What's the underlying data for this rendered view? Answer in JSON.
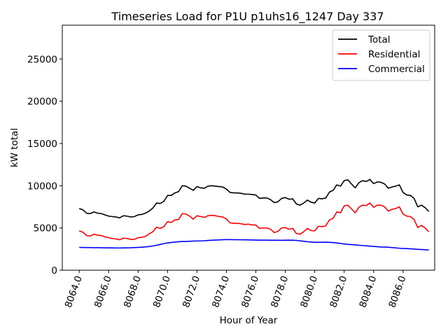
{
  "chart_data": {
    "type": "line",
    "title": "Timeseries Load for P1U p1uhs16_1247  Day 337",
    "xlabel": "Hour of Year",
    "ylabel": "kW total",
    "xlim": [
      8062.85,
      8088.15
    ],
    "ylim": [
      0,
      29000
    ],
    "xticks": [
      8064,
      8066,
      8068,
      8070,
      8072,
      8074,
      8076,
      8078,
      8080,
      8082,
      8084,
      8086
    ],
    "xtick_labels": [
      "8064.0",
      "8066.0",
      "8068.0",
      "8070.0",
      "8072.0",
      "8074.0",
      "8076.0",
      "8078.0",
      "8080.0",
      "8082.0",
      "8084.0",
      "8086.0"
    ],
    "yticks": [
      0,
      5000,
      10000,
      15000,
      20000,
      25000
    ],
    "ytick_labels": [
      "0",
      "5000",
      "10000",
      "15000",
      "20000",
      "25000"
    ],
    "legend_position": "top-right",
    "x": [
      8064.0,
      8064.25,
      8064.5,
      8064.75,
      8065.0,
      8065.25,
      8065.5,
      8065.75,
      8066.0,
      8066.25,
      8066.5,
      8066.75,
      8067.0,
      8067.25,
      8067.5,
      8067.75,
      8068.0,
      8068.25,
      8068.5,
      8068.75,
      8069.0,
      8069.25,
      8069.5,
      8069.75,
      8070.0,
      8070.25,
      8070.5,
      8070.75,
      8071.0,
      8071.25,
      8071.5,
      8071.75,
      8072.0,
      8072.25,
      8072.5,
      8072.75,
      8073.0,
      8073.25,
      8073.5,
      8073.75,
      8074.0,
      8074.25,
      8074.5,
      8074.75,
      8075.0,
      8075.25,
      8075.5,
      8075.75,
      8076.0,
      8076.25,
      8076.5,
      8076.75,
      8077.0,
      8077.25,
      8077.5,
      8077.75,
      8078.0,
      8078.25,
      8078.5,
      8078.75,
      8079.0,
      8079.25,
      8079.5,
      8079.75,
      8080.0,
      8080.25,
      8080.5,
      8080.75,
      8081.0,
      8081.25,
      8081.5,
      8081.75,
      8082.0,
      8082.25,
      8082.5,
      8082.75,
      8083.0,
      8083.25,
      8083.5,
      8083.75,
      8084.0,
      8084.25,
      8084.5,
      8084.75,
      8085.0,
      8085.25,
      8085.5,
      8085.75,
      8086.0,
      8086.25,
      8086.5,
      8086.75,
      8087.0,
      8087.25,
      8087.5,
      8087.75
    ],
    "series": [
      {
        "name": "Total",
        "color": "#000000",
        "values": [
          7300,
          7150,
          6750,
          6700,
          6900,
          6750,
          6700,
          6550,
          6400,
          6350,
          6300,
          6200,
          6450,
          6400,
          6300,
          6350,
          6550,
          6600,
          6750,
          7000,
          7350,
          7950,
          7900,
          8150,
          8850,
          8850,
          9150,
          9300,
          10000,
          9950,
          9700,
          9450,
          9900,
          9750,
          9700,
          9950,
          10000,
          9950,
          9900,
          9850,
          9600,
          9200,
          9150,
          9150,
          9100,
          9000,
          9000,
          8950,
          8900,
          8500,
          8550,
          8550,
          8350,
          8000,
          8100,
          8500,
          8600,
          8400,
          8450,
          7850,
          7700,
          7950,
          8300,
          8050,
          7950,
          8500,
          8450,
          8550,
          9250,
          9450,
          10100,
          9950,
          10600,
          10700,
          10200,
          9750,
          10350,
          10600,
          10500,
          10750,
          10250,
          10450,
          10400,
          10200,
          9700,
          9850,
          9950,
          10100,
          9200,
          8900,
          8850,
          8500,
          7500,
          7700,
          7400,
          6950
        ]
      },
      {
        "name": "Residential",
        "color": "#ff0000",
        "values": [
          4650,
          4500,
          4100,
          4050,
          4250,
          4150,
          4100,
          3950,
          3850,
          3750,
          3700,
          3600,
          3800,
          3750,
          3650,
          3650,
          3850,
          3900,
          4000,
          4300,
          4550,
          5100,
          4950,
          5150,
          5750,
          5650,
          5950,
          6000,
          6700,
          6650,
          6400,
          6050,
          6450,
          6350,
          6250,
          6450,
          6500,
          6450,
          6350,
          6300,
          6050,
          5600,
          5550,
          5550,
          5500,
          5400,
          5450,
          5350,
          5350,
          4950,
          5000,
          5000,
          4850,
          4450,
          4600,
          5000,
          5050,
          4850,
          4950,
          4350,
          4250,
          4550,
          4950,
          4700,
          4650,
          5200,
          5150,
          5250,
          5950,
          6150,
          6900,
          6800,
          7600,
          7700,
          7250,
          6800,
          7450,
          7700,
          7650,
          7950,
          7450,
          7700,
          7700,
          7500,
          7000,
          7200,
          7300,
          7500,
          6650,
          6400,
          6350,
          6000,
          5050,
          5300,
          5000,
          4550
        ]
      },
      {
        "name": "Commercial",
        "color": "#0000ff",
        "values": [
          2700,
          2690,
          2680,
          2680,
          2670,
          2670,
          2660,
          2650,
          2650,
          2640,
          2630,
          2630,
          2640,
          2650,
          2660,
          2680,
          2700,
          2720,
          2760,
          2800,
          2870,
          2950,
          3050,
          3150,
          3230,
          3280,
          3330,
          3370,
          3400,
          3400,
          3420,
          3440,
          3460,
          3470,
          3490,
          3520,
          3550,
          3570,
          3590,
          3610,
          3620,
          3620,
          3610,
          3610,
          3600,
          3600,
          3590,
          3580,
          3570,
          3560,
          3560,
          3560,
          3550,
          3550,
          3550,
          3540,
          3550,
          3560,
          3550,
          3530,
          3480,
          3420,
          3370,
          3340,
          3300,
          3300,
          3310,
          3320,
          3300,
          3270,
          3230,
          3170,
          3100,
          3060,
          3030,
          3000,
          2950,
          2920,
          2890,
          2850,
          2810,
          2780,
          2750,
          2740,
          2720,
          2680,
          2640,
          2600,
          2570,
          2560,
          2530,
          2500,
          2470,
          2450,
          2420,
          2400
        ]
      }
    ]
  }
}
